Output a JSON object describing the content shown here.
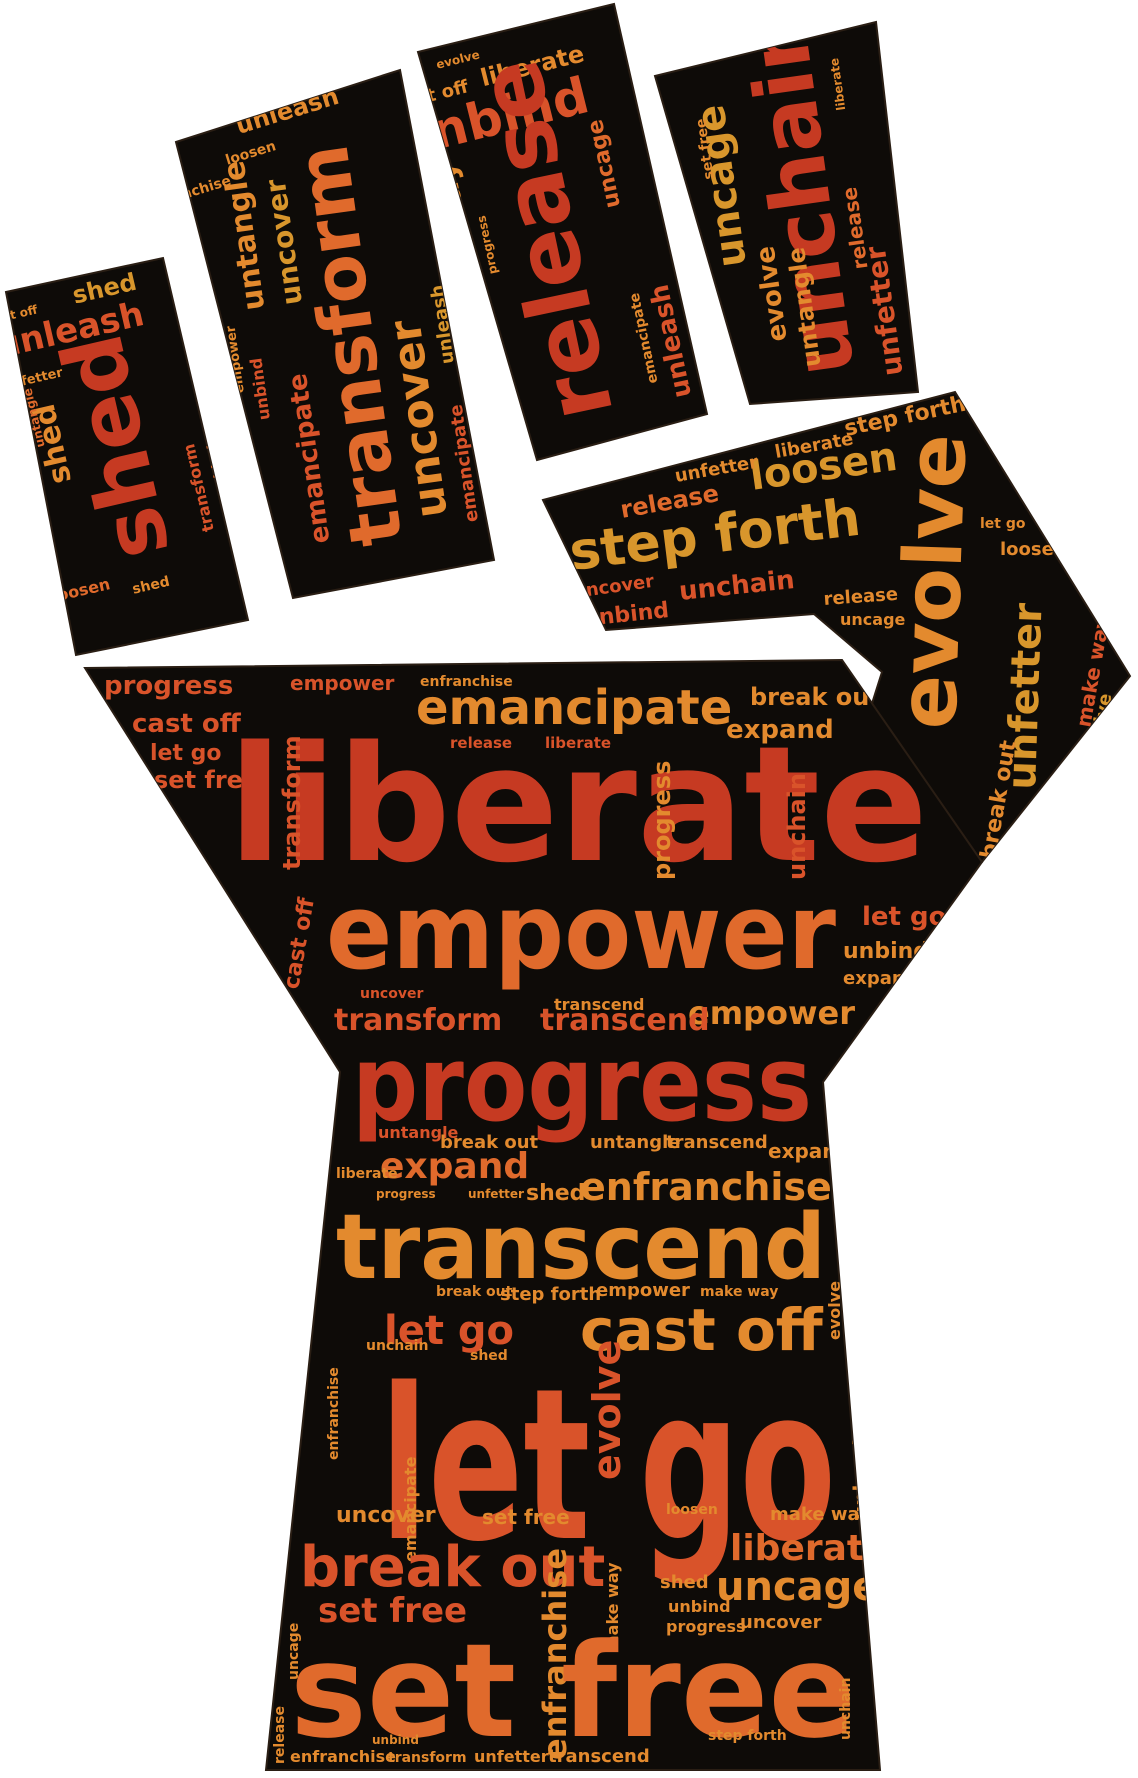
{
  "colors": {
    "background": "#ffffff",
    "shape_fill": "#0e0b08",
    "shape_outline": "#2a1e14",
    "red": "#c63a22",
    "red_orange": "#d9532a",
    "orange": "#e06a2c",
    "amber": "#e38a2e",
    "gold": "#d8962c"
  },
  "words": {
    "liberate": "liberate",
    "empower": "empower",
    "progress": "progress",
    "transcend": "transcend",
    "let_go": "let go",
    "set_free": "set free",
    "cast_off": "cast off",
    "break_out": "break out",
    "emancipate": "emancipate",
    "evolve": "evolve",
    "unfetter": "unfetter",
    "unchain": "unchain",
    "release": "release",
    "unbind": "unbind",
    "transform": "transform",
    "uncover": "uncover",
    "shed": "shed",
    "unleash": "unleash",
    "untangle": "untangle",
    "loosen": "loosen",
    "uncage": "uncage",
    "make_way": "make way",
    "step_forth": "step forth",
    "expand": "expand",
    "enfranchise": "enfranchise"
  }
}
